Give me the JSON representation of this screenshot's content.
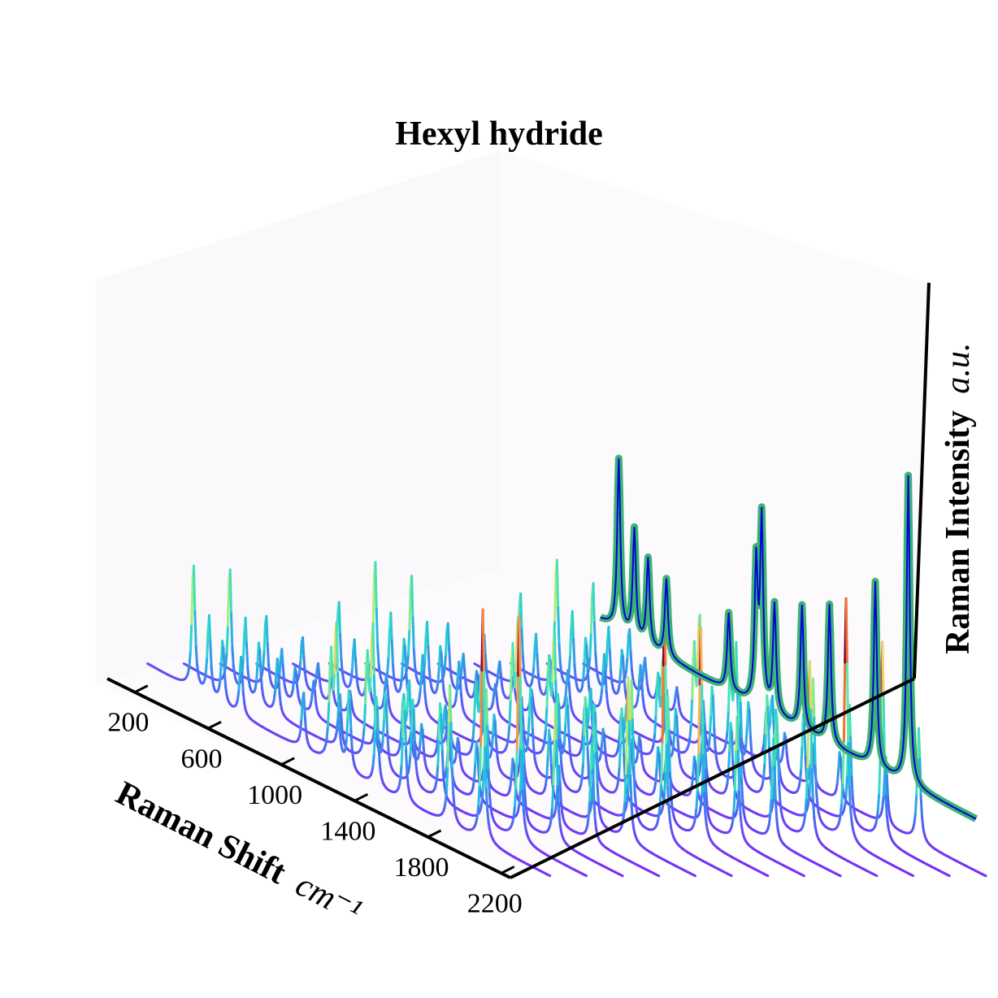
{
  "chart_data": {
    "type": "line",
    "title": "Hexyl hydride",
    "xlabel": "Raman Shift",
    "xunit": "cm⁻¹",
    "zlabel": "Raman Intensity",
    "zunit": "a.u.",
    "x_ticks": [
      "200",
      "600",
      "1000",
      "1400",
      "1800",
      "2200"
    ],
    "xlim": [
      50,
      2250
    ],
    "n_spectra": 13,
    "peaks": [
      {
        "x": 300,
        "h": 0.55
      },
      {
        "x": 385,
        "h": 0.35
      },
      {
        "x": 460,
        "h": 0.28
      },
      {
        "x": 560,
        "h": 0.25
      },
      {
        "x": 900,
        "h": 0.25
      },
      {
        "x": 1050,
        "h": 0.45
      },
      {
        "x": 1080,
        "h": 0.6
      },
      {
        "x": 1150,
        "h": 0.35
      },
      {
        "x": 1300,
        "h": 0.4
      },
      {
        "x": 1450,
        "h": 0.45
      },
      {
        "x": 1700,
        "h": 0.6
      },
      {
        "x": 1880,
        "h": 1.0
      }
    ],
    "series_colormap": [
      "#7b2ff7",
      "#3f7bf0",
      "#22c3dd",
      "#3fe0c0",
      "#a8f07a",
      "#f7d060",
      "#f06a30",
      "#c2185b",
      "#7a0036"
    ],
    "reference_spectrum": {
      "fill_color": "#3cb371",
      "line_color": "#0000dd"
    }
  }
}
